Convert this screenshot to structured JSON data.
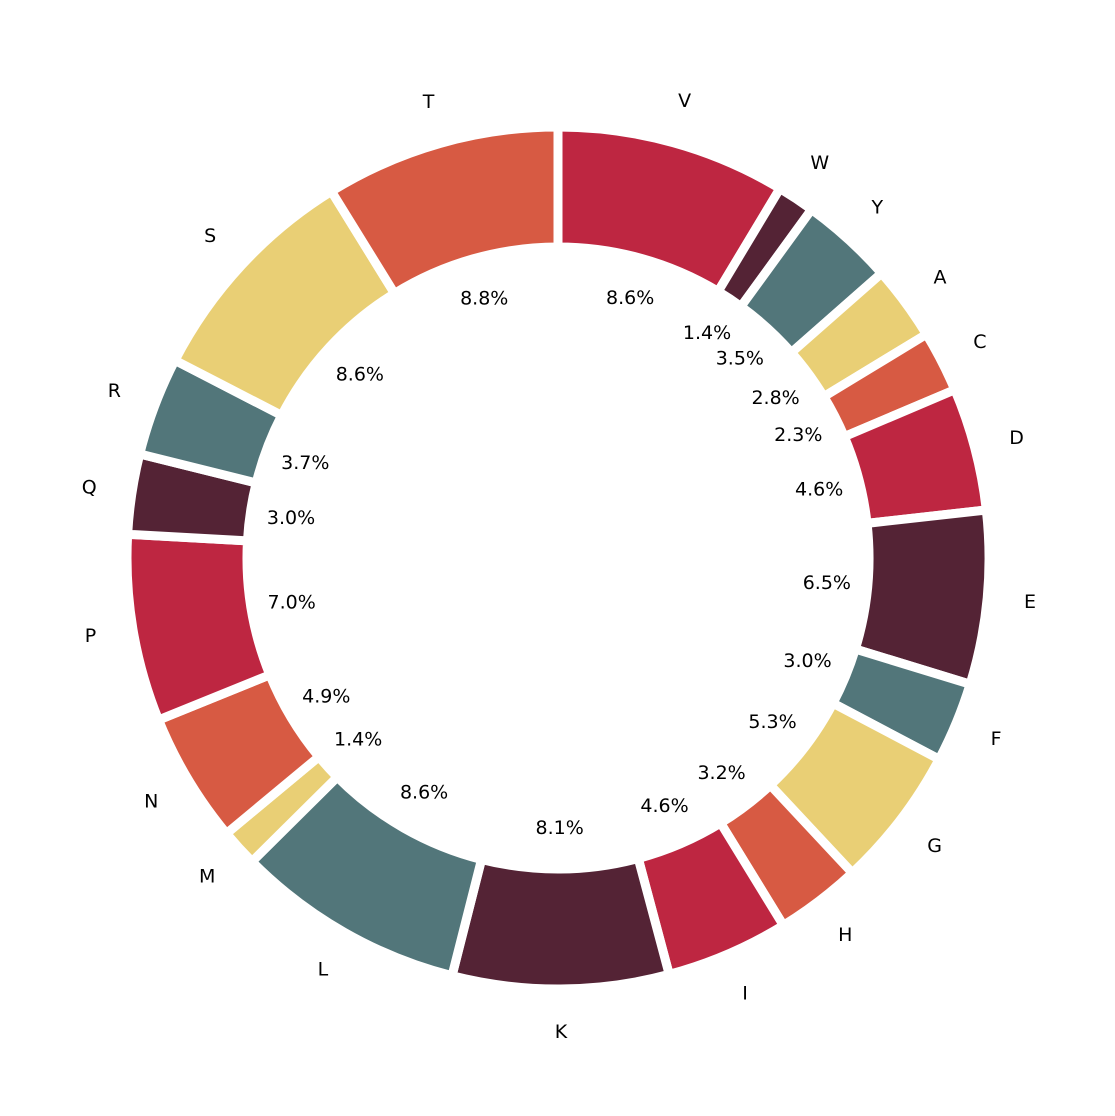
{
  "chart_data": {
    "type": "pie",
    "variant": "donut",
    "start": "top",
    "direction": "clockwise",
    "legend": "none",
    "grid": false,
    "slices": [
      {
        "label": "V",
        "value": 8.6,
        "pct_label": "8.6%",
        "color": "#be2641"
      },
      {
        "label": "W",
        "value": 1.4,
        "pct_label": "1.4%",
        "color": "#542335"
      },
      {
        "label": "Y",
        "value": 3.5,
        "pct_label": "3.5%",
        "color": "#52767a"
      },
      {
        "label": "A",
        "value": 2.8,
        "pct_label": "2.8%",
        "color": "#e9cf75"
      },
      {
        "label": "C",
        "value": 2.3,
        "pct_label": "2.3%",
        "color": "#d75a43"
      },
      {
        "label": "D",
        "value": 4.6,
        "pct_label": "4.6%",
        "color": "#be2641"
      },
      {
        "label": "E",
        "value": 6.5,
        "pct_label": "6.5%",
        "color": "#542335"
      },
      {
        "label": "F",
        "value": 3.0,
        "pct_label": "3.0%",
        "color": "#52767a"
      },
      {
        "label": "G",
        "value": 5.3,
        "pct_label": "5.3%",
        "color": "#e9cf75"
      },
      {
        "label": "H",
        "value": 3.2,
        "pct_label": "3.2%",
        "color": "#d75a43"
      },
      {
        "label": "I",
        "value": 4.6,
        "pct_label": "4.6%",
        "color": "#be2641"
      },
      {
        "label": "K",
        "value": 8.1,
        "pct_label": "8.1%",
        "color": "#542335"
      },
      {
        "label": "L",
        "value": 8.6,
        "pct_label": "8.6%",
        "color": "#52767a"
      },
      {
        "label": "M",
        "value": 1.4,
        "pct_label": "1.4%",
        "color": "#e9cf75"
      },
      {
        "label": "N",
        "value": 4.9,
        "pct_label": "4.9%",
        "color": "#d75a43"
      },
      {
        "label": "P",
        "value": 7.0,
        "pct_label": "7.0%",
        "color": "#be2641"
      },
      {
        "label": "Q",
        "value": 3.0,
        "pct_label": "3.0%",
        "color": "#542335"
      },
      {
        "label": "R",
        "value": 3.7,
        "pct_label": "3.7%",
        "color": "#52767a"
      },
      {
        "label": "S",
        "value": 8.6,
        "pct_label": "8.6%",
        "color": "#e9cf75"
      },
      {
        "label": "T",
        "value": 8.8,
        "pct_label": "8.8%",
        "color": "#d75a43"
      }
    ]
  }
}
